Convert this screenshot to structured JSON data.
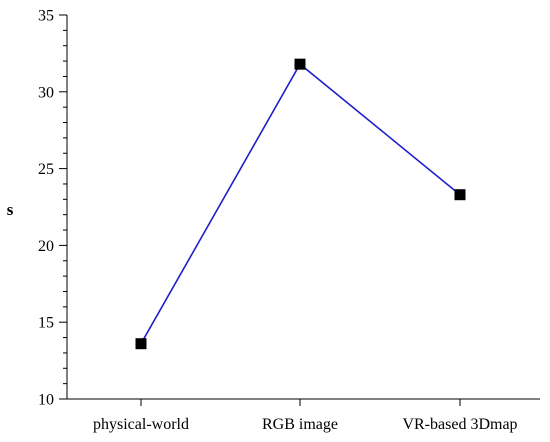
{
  "chart_data": {
    "type": "line",
    "title": "",
    "xlabel": "",
    "ylabel": "s",
    "categories": [
      "physical-world",
      "RGB image",
      "VR-based 3Dmap"
    ],
    "series": [
      {
        "values": [
          13.6,
          31.8,
          23.3
        ]
      }
    ],
    "ylim": [
      10,
      35
    ],
    "yticks": [
      10,
      15,
      20,
      25,
      30,
      35
    ],
    "y_minor_step": 1,
    "grid": false,
    "legend": "none",
    "colors": {
      "line": "#1f1fcc",
      "marker": "#000000",
      "axis": "#000000"
    }
  }
}
